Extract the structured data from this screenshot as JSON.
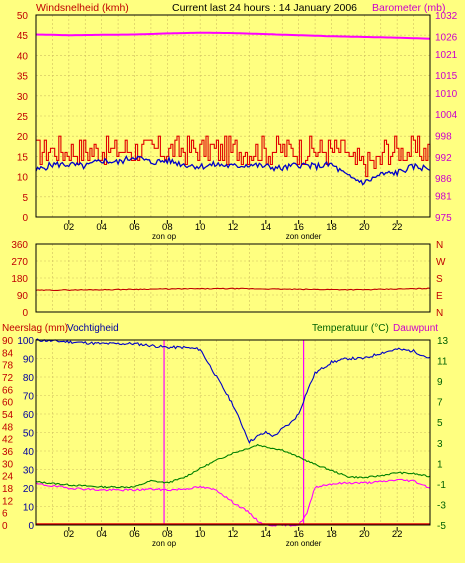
{
  "header": {
    "left": "Windsnelheid (kmh)",
    "center": "Current last 24 hours : 14 January 2006",
    "right": "Barometer (mb)"
  },
  "panel3": {
    "left1": "Neerslag (mm)",
    "left2": "Vochtigheid",
    "right1": "Temperatuur (°C)",
    "right2": "Dauwpunt"
  },
  "colors": {
    "background": "#ffff80",
    "wind_avg": "#0000c8",
    "wind_gust": "#e00000",
    "barometer": "#ff00ff",
    "direction": "#c00000",
    "humidity": "#0000c8",
    "temperature": "#008000",
    "dewpoint": "#ff00ff",
    "rain": "#e00000",
    "grid": "#d0c060",
    "axis_left": "#c00000",
    "axis_right": "#cc00cc",
    "axis_temp": "#006000"
  },
  "chart_data": [
    {
      "type": "line",
      "x_labels": [
        "02",
        "04",
        "06",
        "08",
        "10",
        "12",
        "14",
        "16",
        "18",
        "20",
        "22"
      ],
      "x_markers": [
        {
          "x": 7.8,
          "label": "zon op"
        },
        {
          "x": 16.3,
          "label": "zon onder"
        }
      ],
      "left_axis": {
        "ticks": [
          0,
          5,
          10,
          15,
          20,
          25,
          30,
          35,
          40,
          45,
          50
        ],
        "range": [
          0,
          50
        ]
      },
      "right_axis": {
        "ticks": [
          975,
          981,
          986,
          992,
          998,
          1004,
          1010,
          1015,
          1021,
          1026,
          1032
        ],
        "range": [
          975,
          1032
        ]
      },
      "series": [
        {
          "key": "gust",
          "axis": "left",
          "mean": 16.5,
          "amp": 3.5,
          "step": true
        },
        {
          "key": "avg",
          "axis": "left",
          "x": [
            0,
            1,
            2,
            3,
            4,
            5,
            6,
            7,
            8,
            9,
            10,
            11,
            12,
            13,
            14,
            15,
            16,
            17,
            18,
            19,
            20,
            21,
            22,
            23,
            24
          ],
          "y": [
            11.5,
            13,
            13,
            12.5,
            14,
            13.5,
            15,
            13.5,
            14,
            13,
            12.5,
            13,
            12.5,
            13,
            12.5,
            12,
            13,
            12.5,
            13,
            10,
            8.5,
            10.5,
            11,
            12.5,
            12
          ]
        },
        {
          "key": "baro",
          "axis": "right",
          "x": [
            0,
            2,
            4,
            6,
            8,
            10,
            12,
            14,
            16,
            18,
            20,
            22,
            24
          ],
          "y": [
            1026.5,
            1026.3,
            1026.4,
            1026.5,
            1026.8,
            1027.0,
            1026.9,
            1026.6,
            1026.3,
            1026.0,
            1025.8,
            1025.6,
            1025.3
          ]
        }
      ],
      "x_range": [
        0,
        24
      ]
    },
    {
      "type": "line",
      "left_axis": {
        "ticks": [
          0,
          90,
          180,
          270,
          360
        ],
        "range": [
          0,
          360
        ]
      },
      "right_labels": [
        "N",
        "W",
        "S",
        "E",
        "N"
      ],
      "series": [
        {
          "key": "dir",
          "x": [
            0,
            4,
            8,
            12,
            16,
            20,
            24
          ],
          "y": [
            115,
            118,
            122,
            124,
            120,
            118,
            125
          ]
        }
      ],
      "x_range": [
        0,
        24
      ]
    },
    {
      "type": "line",
      "x_labels": [
        "02",
        "04",
        "06",
        "08",
        "10",
        "12",
        "14",
        "16",
        "18",
        "20",
        "22"
      ],
      "x_markers": [
        {
          "x": 7.8,
          "label": "zon op"
        },
        {
          "x": 16.3,
          "label": "zon onder"
        }
      ],
      "left_ticks_rain": [
        0,
        6,
        12,
        18,
        24,
        30,
        36,
        42,
        48,
        54,
        60,
        66,
        72,
        78,
        84,
        90
      ],
      "left_ticks_hum": [
        0,
        10,
        20,
        30,
        40,
        50,
        60,
        70,
        80,
        90,
        100
      ],
      "right_axis": {
        "ticks": [
          -5,
          -3,
          -1,
          1,
          3,
          5,
          7,
          9,
          11,
          13
        ],
        "range": [
          -5,
          13
        ]
      },
      "series": [
        {
          "key": "hum",
          "x": [
            0,
            2,
            4,
            6,
            8,
            9,
            10,
            11,
            12,
            12.5,
            13,
            13.5,
            14,
            14.5,
            15,
            15.5,
            16,
            16.5,
            17,
            18,
            19,
            20,
            21,
            22,
            23,
            24
          ],
          "y": [
            100,
            99,
            98,
            98,
            96,
            96,
            95,
            80,
            65,
            55,
            45,
            48,
            50,
            48,
            52,
            55,
            60,
            72,
            82,
            88,
            90,
            90,
            93,
            95,
            94,
            90
          ]
        },
        {
          "key": "temp",
          "x": [
            0,
            2,
            4,
            6,
            6.5,
            7,
            8,
            9,
            10,
            11,
            12,
            13,
            13.5,
            14,
            15,
            16,
            17,
            18,
            19,
            20,
            21,
            22,
            23,
            24
          ],
          "y": [
            -0.8,
            -1.1,
            -1.3,
            -1.3,
            -1.0,
            -0.7,
            -0.9,
            -0.4,
            0.5,
            1.3,
            2.0,
            2.5,
            2.8,
            2.6,
            2.3,
            1.6,
            0.9,
            0.3,
            -0.3,
            -0.4,
            -0.2,
            0.1,
            0.0,
            -0.3
          ]
        },
        {
          "key": "dew",
          "x": [
            0,
            2,
            4,
            6,
            7,
            8,
            9,
            10,
            11,
            11.5,
            12,
            12.5,
            13,
            13.5,
            14,
            15,
            16,
            16.5,
            17,
            18,
            19,
            20,
            21,
            22,
            23,
            24
          ],
          "y": [
            -1.0,
            -1.4,
            -1.6,
            -1.6,
            -1.5,
            -1.6,
            -1.5,
            -1.3,
            -1.6,
            -2.2,
            -2.8,
            -3.3,
            -3.8,
            -4.6,
            -5,
            -5,
            -5,
            -3.9,
            -1.3,
            -1.0,
            -0.9,
            -0.9,
            -0.8,
            -0.6,
            -0.7,
            -1.4
          ]
        }
      ],
      "x_range": [
        0,
        24
      ]
    }
  ]
}
